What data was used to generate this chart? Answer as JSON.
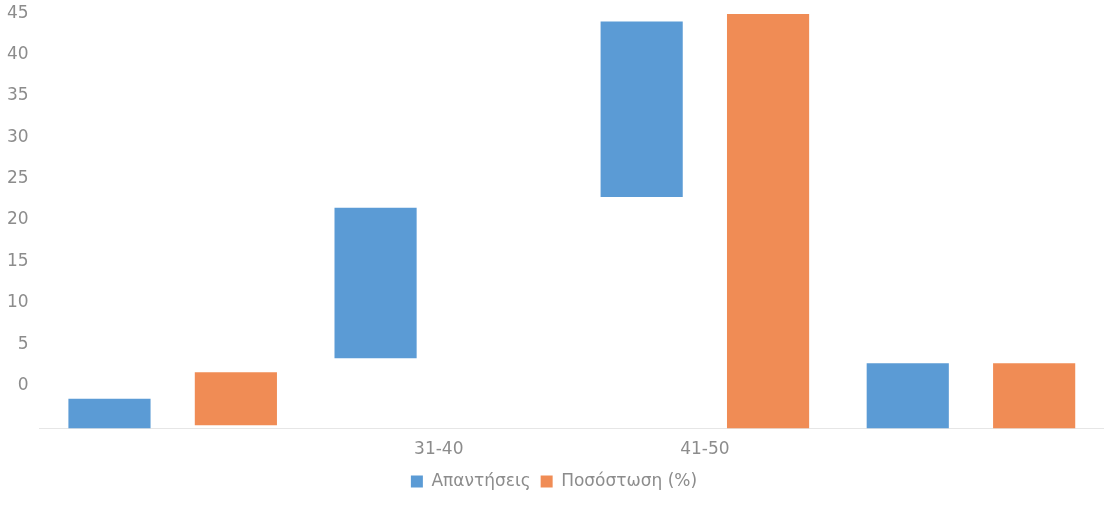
{
  "chart_data": {
    "type": "bar",
    "categories": [
      null,
      "31-40",
      "41-50",
      null
    ],
    "series": [
      {
        "name": "Απαντήσεις",
        "color": "#5b9bd5",
        "base": [
          -5.2,
          3.3,
          22.8,
          -5.2
        ],
        "values": [
          3.6,
          18.2,
          21.2,
          7.9
        ]
      },
      {
        "name": "Ποσόστωση (%)",
        "color": "#f08c55",
        "base": [
          -4.8,
          null,
          -5.2,
          -5.2
        ],
        "values": [
          6.4,
          null,
          50.1,
          7.9
        ]
      }
    ],
    "ylim": [
      -5.2,
      45
    ],
    "yticks": [
      0,
      5,
      10,
      15,
      20,
      25,
      30,
      35,
      40,
      45
    ],
    "legend": "bottom"
  }
}
